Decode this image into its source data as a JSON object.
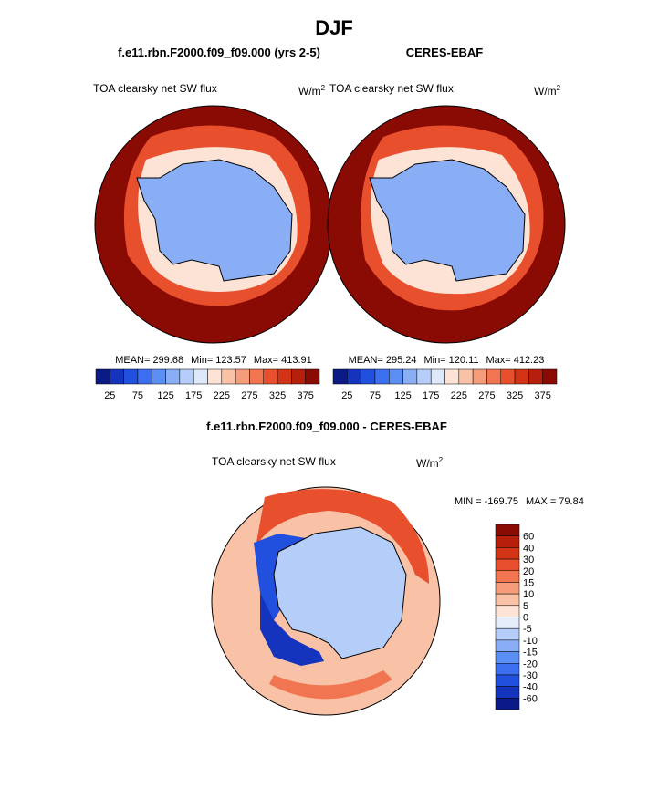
{
  "title": "DJF",
  "panels": [
    {
      "title": "f.e11.rbn.F2000.f09_f09.000 (yrs 2-5)",
      "variable": "TOA clearsky net SW flux",
      "units": {
        "base": "W/m",
        "sup": "2"
      },
      "stats": [
        {
          "label": "MEAN=",
          "value": 299.68
        },
        {
          "label": "Min=",
          "value": 123.57
        },
        {
          "label": "Max=",
          "value": 413.91
        }
      ],
      "colorbar": {
        "labels": [
          25,
          75,
          125,
          175,
          225,
          275,
          325,
          375
        ],
        "colors": [
          "#0b1a86",
          "#1534bd",
          "#2150de",
          "#3b6ff0",
          "#5c8ff4",
          "#8aaef6",
          "#b5cef9",
          "#dde9fb",
          "#fde3d5",
          "#f9c2a6",
          "#f59d7a",
          "#f07550",
          "#e84f2c",
          "#d33416",
          "#b61f0b",
          "#8a0a04"
        ]
      }
    },
    {
      "title": "CERES-EBAF",
      "variable": "TOA clearsky net SW flux",
      "units": {
        "base": "W/m",
        "sup": "2"
      },
      "stats": [
        {
          "label": "MEAN=",
          "value": 295.24
        },
        {
          "label": "Min=",
          "value": 120.11
        },
        {
          "label": "Max=",
          "value": 412.23
        }
      ],
      "colorbar": {
        "labels": [
          25,
          75,
          125,
          175,
          225,
          275,
          325,
          375
        ],
        "colors": [
          "#0b1a86",
          "#1534bd",
          "#2150de",
          "#3b6ff0",
          "#5c8ff4",
          "#8aaef6",
          "#b5cef9",
          "#dde9fb",
          "#fde3d5",
          "#f9c2a6",
          "#f59d7a",
          "#f07550",
          "#e84f2c",
          "#d33416",
          "#b61f0b",
          "#8a0a04"
        ]
      }
    }
  ],
  "difference": {
    "title": "f.e11.rbn.F2000.f09_f09.000 - CERES-EBAF",
    "variable": "TOA clearsky net SW flux",
    "units": {
      "base": "W/m",
      "sup": "2"
    },
    "stats": [
      {
        "label": "MIN =",
        "value": -169.75
      },
      {
        "label": "MAX =",
        "value": 79.84
      }
    ],
    "colorbar": {
      "labels": [
        60,
        40,
        30,
        20,
        15,
        10,
        5,
        0,
        -5,
        -10,
        -15,
        -20,
        -30,
        -40,
        -60
      ],
      "colors": [
        "#8a0a04",
        "#b61f0b",
        "#d33416",
        "#e84f2c",
        "#f07550",
        "#f59d7a",
        "#f9c2a6",
        "#fde3d5",
        "#e6eefb",
        "#b5cef9",
        "#8aaef6",
        "#5c8ff4",
        "#3b6ff0",
        "#2150de",
        "#1534bd",
        "#0b1a86"
      ]
    }
  }
}
